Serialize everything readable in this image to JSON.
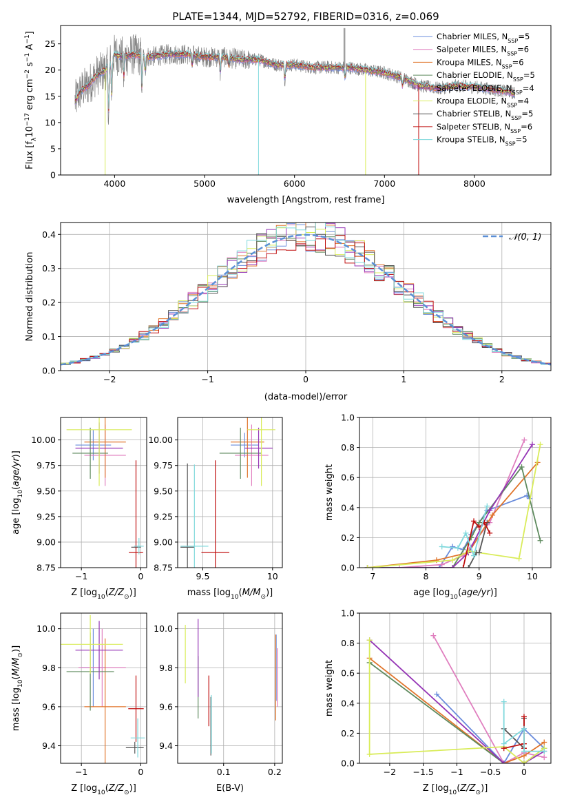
{
  "figure_title": "PLATE=1344, MJD=52792, FIBERID=0316, z=0.069",
  "palette": {
    "chabrier_miles": "#6a8cdc",
    "salpeter_miles": "#e07fbf",
    "kroupa_miles": "#e0742a",
    "chabrier_elodie": "#5e8a5e",
    "salpeter_elodie": "#9433b5",
    "kroupa_elodie": "#d9ec5a",
    "chabrier_stelib": "#555555",
    "salpeter_stelib": "#c01010",
    "kroupa_stelib": "#7fd8dc",
    "gaussian": "#5b8fd6",
    "data_gray": "#808080",
    "grid": "#b0b0b0"
  },
  "chart_data": [
    {
      "id": "spectrum",
      "type": "line",
      "xlabel": "wavelength [Angstrom, rest frame]",
      "ylabel_parts": [
        "Flux [f",
        "λ",
        "10",
        "−17",
        " erg cm",
        "−2",
        " s",
        "−1",
        " A",
        "−1",
        "]"
      ],
      "xlim": [
        3400,
        8850
      ],
      "ylim": [
        0,
        28.5
      ],
      "xticks": [
        4000,
        5000,
        6000,
        7000,
        8000
      ],
      "yticks": [
        0,
        5,
        10,
        15,
        20,
        25
      ],
      "legend": [
        {
          "base": "Chabrier MILES, N",
          "sub": "SSP",
          "suffix": "=5",
          "color_key": "chabrier_miles"
        },
        {
          "base": "Salpeter MILES, N",
          "sub": "SSP",
          "suffix": "=6",
          "color_key": "salpeter_miles"
        },
        {
          "base": "Kroupa MILES, N",
          "sub": "SSP",
          "suffix": "=6",
          "color_key": "kroupa_miles"
        },
        {
          "base": "Chabrier ELODIE, N",
          "sub": "SSP",
          "suffix": "=5",
          "color_key": "chabrier_elodie"
        },
        {
          "base": "Salpeter ELODIE, N",
          "sub": "SSP",
          "suffix": "=4",
          "color_key": "salpeter_elodie"
        },
        {
          "base": "Kroupa ELODIE, N",
          "sub": "SSP",
          "suffix": "=4",
          "color_key": "kroupa_elodie"
        },
        {
          "base": "Chabrier STELIB, N",
          "sub": "SSP",
          "suffix": "=5",
          "color_key": "chabrier_stelib"
        },
        {
          "base": "Salpeter STELIB, N",
          "sub": "SSP",
          "suffix": "=6",
          "color_key": "salpeter_stelib"
        },
        {
          "base": "Kroupa STELIB, N",
          "sub": "SSP",
          "suffix": "=5",
          "color_key": "kroupa_stelib"
        }
      ],
      "continuum": [
        [
          3560,
          14
        ],
        [
          3620,
          16
        ],
        [
          3700,
          17
        ],
        [
          3800,
          19
        ],
        [
          3900,
          20
        ],
        [
          4000,
          23
        ],
        [
          4100,
          22.5
        ],
        [
          4200,
          23
        ],
        [
          4400,
          22.5
        ],
        [
          4600,
          23
        ],
        [
          4800,
          23
        ],
        [
          5000,
          22.5
        ],
        [
          5200,
          22.5
        ],
        [
          5400,
          22
        ],
        [
          5600,
          22
        ],
        [
          5800,
          21
        ],
        [
          6000,
          21
        ],
        [
          6200,
          20.5
        ],
        [
          6400,
          20.5
        ],
        [
          6600,
          20.5
        ],
        [
          6800,
          20
        ],
        [
          7000,
          19.5
        ],
        [
          7200,
          18.5
        ],
        [
          7400,
          17
        ],
        [
          7600,
          16.5
        ],
        [
          7800,
          17
        ],
        [
          8000,
          16.8
        ],
        [
          8200,
          16.3
        ],
        [
          8400,
          15.8
        ],
        [
          8450,
          15.5
        ]
      ],
      "features": [
        {
          "w": 3934,
          "depth": 10
        },
        {
          "w": 3969,
          "depth": 7
        },
        {
          "w": 4102,
          "depth": 4
        },
        {
          "w": 4304,
          "depth": 6
        },
        {
          "w": 4340,
          "depth": 3
        },
        {
          "w": 4861,
          "depth": 2
        },
        {
          "w": 5175,
          "depth": 3
        },
        {
          "w": 5270,
          "depth": 1.5
        },
        {
          "w": 5892,
          "depth": 3
        },
        {
          "w": 6563,
          "depth": 2
        },
        {
          "w": 7200,
          "depth": 1.5
        },
        {
          "w": 8498,
          "depth": 2
        },
        {
          "w": 8542,
          "depth": 2
        }
      ],
      "spikes": [
        {
          "w": 3895,
          "y": 0,
          "color_key": "kroupa_elodie"
        },
        {
          "w": 5600,
          "y": 0,
          "color_key": "kroupa_stelib"
        },
        {
          "w": 6550,
          "y": 28,
          "color_key": "data_gray"
        },
        {
          "w": 6560,
          "y": 28,
          "color_key": "data_gray"
        },
        {
          "w": 6790,
          "y": 0,
          "color_key": "kroupa_elodie"
        },
        {
          "w": 7380,
          "y": 0,
          "color_key": "salpeter_stelib"
        }
      ]
    },
    {
      "id": "residual-hist",
      "type": "histogram",
      "xlabel": "(data-model)/error",
      "ylabel": "Normed distribution",
      "xlim": [
        -2.5,
        2.5
      ],
      "ylim": [
        0,
        0.435
      ],
      "xticks": [
        -2,
        -1,
        0,
        1,
        2
      ],
      "yticks": [
        0.0,
        0.1,
        0.2,
        0.3,
        0.4
      ],
      "legend_label": "𝒩(0, 1)",
      "bin_width": 0.1,
      "gaussian": {
        "mu": 0,
        "sigma": 1
      }
    },
    {
      "id": "age-vs-Z",
      "type": "scatter",
      "xlabel": "Z [log10(Z/Z⊙)]",
      "ylabel": "age  [log10(age/yr)]",
      "xlim": [
        -1.35,
        0.1
      ],
      "ylim": [
        8.75,
        10.22
      ],
      "xticks": [
        -1,
        0
      ],
      "yticks": [
        8.75,
        9.0,
        9.25,
        9.5,
        9.75,
        10.0
      ],
      "points": [
        {
          "x": -0.8,
          "y": 9.95,
          "xerr": 0.3,
          "yerr": 0.15,
          "color_key": "chabrier_miles"
        },
        {
          "x": -0.6,
          "y": 9.85,
          "xerr": 0.35,
          "yerr": 0.3,
          "color_key": "salpeter_miles"
        },
        {
          "x": -0.6,
          "y": 9.98,
          "xerr": 0.35,
          "yerr": 0.35,
          "color_key": "kroupa_miles"
        },
        {
          "x": -0.85,
          "y": 9.87,
          "xerr": 0.3,
          "yerr": 0.25,
          "color_key": "chabrier_elodie"
        },
        {
          "x": -0.7,
          "y": 9.92,
          "xerr": 0.4,
          "yerr": 0.25,
          "color_key": "salpeter_elodie"
        },
        {
          "x": -0.7,
          "y": 10.1,
          "xerr": 0.55,
          "yerr": 0.55,
          "color_key": "kroupa_elodie"
        },
        {
          "x": -0.08,
          "y": 8.95,
          "xerr": 0.08,
          "yerr": 0.02,
          "color_key": "chabrier_stelib"
        },
        {
          "x": -0.08,
          "y": 8.9,
          "xerr": 0.12,
          "yerr": 0.9,
          "color_key": "salpeter_stelib"
        },
        {
          "x": -0.03,
          "y": 8.96,
          "xerr": 0.08,
          "yerr": 0.08,
          "color_key": "kroupa_stelib"
        }
      ]
    },
    {
      "id": "age-vs-mass",
      "type": "scatter",
      "xlabel": "mass [log10(M/M⊙)]",
      "ylabel": "",
      "xlim": [
        9.32,
        10.07
      ],
      "ylim": [
        8.75,
        10.22
      ],
      "xticks": [
        9.5,
        10.0
      ],
      "yticks": [
        8.75,
        9.0,
        9.25,
        9.5,
        9.75,
        10.0
      ],
      "points": [
        {
          "x": 9.8,
          "y": 9.95,
          "xerr": 0.1,
          "yerr": 0.12,
          "color_key": "chabrier_miles"
        },
        {
          "x": 9.85,
          "y": 9.85,
          "xerr": 0.12,
          "yerr": 0.3,
          "color_key": "salpeter_miles"
        },
        {
          "x": 9.82,
          "y": 9.98,
          "xerr": 0.12,
          "yerr": 0.35,
          "color_key": "kroupa_miles"
        },
        {
          "x": 9.77,
          "y": 9.87,
          "xerr": 0.15,
          "yerr": 0.25,
          "color_key": "chabrier_elodie"
        },
        {
          "x": 9.9,
          "y": 9.92,
          "xerr": 0.1,
          "yerr": 0.2,
          "color_key": "salpeter_elodie"
        },
        {
          "x": 9.92,
          "y": 10.1,
          "xerr": 0.1,
          "yerr": 0.55,
          "color_key": "kroupa_elodie"
        },
        {
          "x": 9.39,
          "y": 8.95,
          "xerr": 0.05,
          "yerr": 0.82,
          "color_key": "chabrier_stelib"
        },
        {
          "x": 9.59,
          "y": 8.9,
          "xerr": 0.1,
          "yerr": 0.9,
          "color_key": "salpeter_stelib"
        },
        {
          "x": 9.44,
          "y": 8.96,
          "xerr": 0.1,
          "yerr": 0.8,
          "color_key": "kroupa_stelib"
        }
      ]
    },
    {
      "id": "massweight-vs-age",
      "type": "line",
      "xlabel": "age  [log10(age/yr)]",
      "ylabel": "mass weight",
      "xlim": [
        6.75,
        10.35
      ],
      "ylim": [
        0,
        1
      ],
      "xticks": [
        7,
        8,
        9,
        10
      ],
      "yticks": [
        0.0,
        0.2,
        0.4,
        0.6,
        0.8,
        1.0
      ],
      "series": [
        {
          "color_key": "chabrier_miles",
          "x": [
            6.9,
            8.25,
            8.5,
            8.7,
            8.85,
            9.15,
            9.9,
            9.95
          ],
          "y": [
            0.0,
            0.0,
            0.14,
            0.12,
            0.22,
            0.38,
            0.48,
            0.46
          ]
        },
        {
          "color_key": "salpeter_miles",
          "x": [
            7.5,
            8.3,
            8.7,
            9.2,
            9.85
          ],
          "y": [
            0.0,
            0.02,
            0.08,
            0.3,
            0.85
          ]
        },
        {
          "color_key": "kroupa_miles",
          "x": [
            6.9,
            8.2,
            8.8,
            9.25,
            10.1
          ],
          "y": [
            0.0,
            0.05,
            0.1,
            0.35,
            0.7
          ]
        },
        {
          "color_key": "chabrier_elodie",
          "x": [
            6.9,
            8.5,
            8.85,
            9.0,
            9.8,
            10.15
          ],
          "y": [
            0.0,
            0.0,
            0.2,
            0.3,
            0.67,
            0.18
          ]
        },
        {
          "color_key": "salpeter_elodie",
          "x": [
            6.9,
            8.5,
            8.8,
            9.2,
            10.0
          ],
          "y": [
            0.0,
            0.0,
            0.1,
            0.38,
            0.82
          ]
        },
        {
          "color_key": "kroupa_elodie",
          "x": [
            6.9,
            8.5,
            8.8,
            9.75,
            10.15
          ],
          "y": [
            0.0,
            0.05,
            0.11,
            0.06,
            0.82
          ]
        },
        {
          "color_key": "chabrier_stelib",
          "x": [
            8.8,
            8.95,
            9.0,
            9.15
          ],
          "y": [
            0.0,
            0.1,
            0.1,
            0.3
          ]
        },
        {
          "color_key": "salpeter_stelib",
          "x": [
            8.7,
            8.9,
            9.0,
            9.1,
            9.2
          ],
          "y": [
            0.0,
            0.31,
            0.27,
            0.3,
            0.23
          ]
        },
        {
          "color_key": "kroupa_stelib",
          "x": [
            8.3,
            8.6,
            8.75,
            8.9,
            9.15
          ],
          "y": [
            0.14,
            0.13,
            0.23,
            0.08,
            0.41
          ]
        }
      ]
    },
    {
      "id": "mass-vs-Z",
      "type": "scatter",
      "xlabel": "Z [log10(Z/Z⊙)]",
      "ylabel": "mass [log10(M/M⊙)]",
      "xlim": [
        -1.35,
        0.1
      ],
      "ylim": [
        9.31,
        10.08
      ],
      "xticks": [
        -1,
        0
      ],
      "yticks": [
        9.4,
        9.6,
        9.8,
        10.0
      ],
      "points": [
        {
          "x": -0.8,
          "y": 9.8,
          "xerr": 0.2,
          "yerr": 0.2,
          "color_key": "chabrier_miles"
        },
        {
          "x": -0.65,
          "y": 9.8,
          "xerr": 0.4,
          "yerr": 0.2,
          "color_key": "salpeter_miles"
        },
        {
          "x": -0.6,
          "y": 9.6,
          "xerr": 0.35,
          "yerr": 0.35,
          "color_key": "kroupa_miles"
        },
        {
          "x": -0.85,
          "y": 9.78,
          "xerr": 0.4,
          "yerr": 0.2,
          "color_key": "chabrier_elodie"
        },
        {
          "x": -0.7,
          "y": 9.89,
          "xerr": 0.4,
          "yerr": 0.15,
          "color_key": "salpeter_elodie"
        },
        {
          "x": -0.85,
          "y": 9.92,
          "xerr": 0.55,
          "yerr": 0.15,
          "color_key": "kroupa_elodie"
        },
        {
          "x": -0.1,
          "y": 9.39,
          "xerr": 0.15,
          "yerr": 0.03,
          "color_key": "chabrier_stelib"
        },
        {
          "x": -0.08,
          "y": 9.59,
          "xerr": 0.13,
          "yerr": 0.17,
          "color_key": "salpeter_stelib"
        },
        {
          "x": -0.05,
          "y": 9.44,
          "xerr": 0.12,
          "yerr": 0.1,
          "color_key": "kroupa_stelib"
        }
      ]
    },
    {
      "id": "mass-vs-ebv",
      "type": "scatter",
      "xlabel": "E(B-V)",
      "ylabel": "",
      "xlim": [
        0.01,
        0.215
      ],
      "ylim": [
        9.31,
        10.08
      ],
      "xticks": [
        0.1,
        0.2
      ],
      "yticks": [
        9.4,
        9.6,
        9.8,
        10.0
      ],
      "points": [
        {
          "x": 0.203,
          "y": 9.8,
          "xerr": 0.0,
          "yerr": 0.17,
          "color_key": "chabrier_miles"
        },
        {
          "x": 0.205,
          "y": 9.75,
          "xerr": 0.0,
          "yerr": 0.15,
          "color_key": "salpeter_miles"
        },
        {
          "x": 0.202,
          "y": 9.75,
          "xerr": 0.0,
          "yerr": 0.22,
          "color_key": "kroupa_miles"
        },
        {
          "x": 0.05,
          "y": 9.7,
          "xerr": 0.0,
          "yerr": 0.16,
          "color_key": "chabrier_elodie"
        },
        {
          "x": 0.05,
          "y": 9.85,
          "xerr": 0.0,
          "yerr": 0.2,
          "color_key": "salpeter_elodie"
        },
        {
          "x": 0.025,
          "y": 9.87,
          "xerr": 0.0,
          "yerr": 0.15,
          "color_key": "kroupa_elodie"
        },
        {
          "x": 0.075,
          "y": 9.5,
          "xerr": 0.0,
          "yerr": 0.15,
          "color_key": "chabrier_stelib"
        },
        {
          "x": 0.071,
          "y": 9.63,
          "xerr": 0.0,
          "yerr": 0.13,
          "color_key": "salpeter_stelib"
        },
        {
          "x": 0.076,
          "y": 9.51,
          "xerr": 0.0,
          "yerr": 0.15,
          "color_key": "kroupa_stelib"
        }
      ]
    },
    {
      "id": "massweight-vs-Z",
      "type": "line",
      "xlabel": "Z [log10(Z/Z⊙)]",
      "ylabel": "mass weight",
      "xlim": [
        -2.45,
        0.4
      ],
      "ylim": [
        0,
        1
      ],
      "xticks": [
        -2.0,
        -1.5,
        -1.0,
        -0.5,
        0.0
      ],
      "yticks": [
        0.0,
        0.2,
        0.4,
        0.6,
        0.8,
        1.0
      ],
      "series": [
        {
          "color_key": "chabrier_miles",
          "x": [
            -1.3,
            -0.3,
            0.0,
            0.3
          ],
          "y": [
            0.46,
            0.0,
            0.23,
            0.1
          ]
        },
        {
          "color_key": "salpeter_miles",
          "x": [
            -1.35,
            -0.3,
            0.0,
            0.3
          ],
          "y": [
            0.85,
            0.0,
            0.07,
            0.04
          ]
        },
        {
          "color_key": "kroupa_miles",
          "x": [
            -2.3,
            -0.3,
            0.0,
            0.3
          ],
          "y": [
            0.7,
            0.0,
            0.05,
            0.14
          ]
        },
        {
          "color_key": "chabrier_elodie",
          "x": [
            -2.3,
            -0.3,
            0.0,
            0.3
          ],
          "y": [
            0.67,
            0.0,
            0.0,
            0.1
          ]
        },
        {
          "color_key": "salpeter_elodie",
          "x": [
            -2.3,
            -0.3,
            0.0,
            0.3
          ],
          "y": [
            0.82,
            0.0,
            0.0,
            0.08
          ]
        },
        {
          "color_key": "kroupa_elodie",
          "x": [
            -2.3,
            -2.3,
            -0.3,
            0.0,
            0.3
          ],
          "y": [
            0.82,
            0.06,
            0.11,
            0.0,
            0.1
          ]
        },
        {
          "color_key": "chabrier_stelib",
          "x": [
            -0.3,
            0.0,
            0.0,
            0.0
          ],
          "y": [
            0.23,
            0.1,
            0.13,
            0.3
          ]
        },
        {
          "color_key": "salpeter_stelib",
          "x": [
            -0.3,
            0.0,
            0.0,
            0.0
          ],
          "y": [
            0.1,
            0.13,
            0.31,
            0.1
          ]
        },
        {
          "color_key": "kroupa_stelib",
          "x": [
            -0.3,
            -0.3,
            0.0,
            0.0,
            0.3
          ],
          "y": [
            0.41,
            0.13,
            0.23,
            0.08,
            0.08
          ]
        }
      ]
    }
  ]
}
